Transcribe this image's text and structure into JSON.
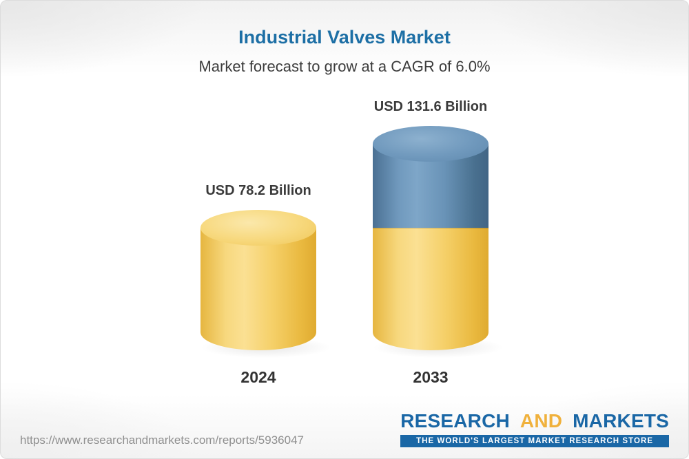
{
  "chart_data": {
    "type": "bar",
    "variant": "3d-cylinder",
    "title": "Industrial Valves Market",
    "subtitle": "Market forecast to grow at a CAGR of 6.0%",
    "cagr_percent": 6.0,
    "unit": "USD Billion",
    "categories": [
      "2024",
      "2033"
    ],
    "values": [
      78.2,
      131.6
    ],
    "value_labels": [
      "USD 78.2 Billion",
      "USD 131.6 Billion"
    ],
    "legend": "none",
    "axes": "none",
    "colors": {
      "title": "#1d6fa5",
      "bar_yellow": "#f5d069",
      "bar_blue": "#6993b7",
      "label_text": "#3a3a3a"
    }
  },
  "footer": {
    "url": "https://www.researchandmarkets.com/reports/5936047",
    "logo": {
      "word1": "RESEARCH",
      "word2": "AND",
      "word3": "MARKETS",
      "tagline": "THE WORLD'S LARGEST MARKET RESEARCH STORE"
    }
  }
}
